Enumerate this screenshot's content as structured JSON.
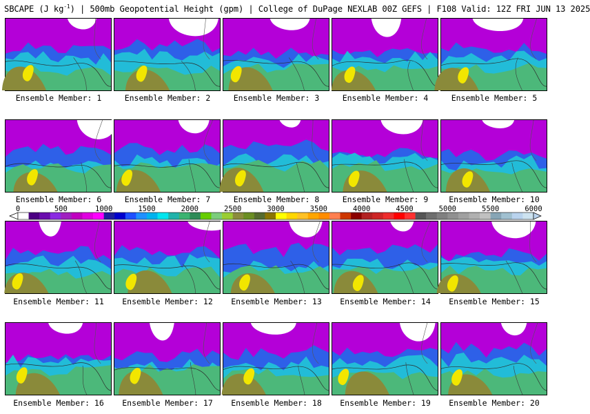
{
  "header": {
    "field_name": "SBCAPE (J kg",
    "field_unit_exp": "-1",
    "rest": ") | 500mb Geopotential Height (gpm) | College of DuPage NEXLAB 00Z GEFS | F108 Valid: 12Z FRI JUN 13 2025"
  },
  "member_prefix": "Ensemble Member:",
  "members": [
    "Ensemble Member: 1",
    "Ensemble Member: 2",
    "Ensemble Member: 3",
    "Ensemble Member: 4",
    "Ensemble Member: 5",
    "Ensemble Member: 6",
    "Ensemble Member: 7",
    "Ensemble Member: 8",
    "Ensemble Member: 9",
    "Ensemble Member: 10",
    "Ensemble Member: 11",
    "Ensemble Member: 12",
    "Ensemble Member: 13",
    "Ensemble Member: 14",
    "Ensemble Member: 15",
    "Ensemble Member: 16",
    "Ensemble Member: 17",
    "Ensemble Member: 18",
    "Ensemble Member: 19",
    "Ensemble Member: 20"
  ],
  "colorbar": {
    "ticks": [
      "0",
      "500",
      "1000",
      "1500",
      "2000",
      "2500",
      "3000",
      "3500",
      "4000",
      "4500",
      "5000",
      "5500",
      "6000"
    ],
    "colors": [
      "#ffffff",
      "#4b0082",
      "#6a0dad",
      "#8a2be2",
      "#a020c0",
      "#c000c0",
      "#e000e0",
      "#ff00ff",
      "#1e1e9e",
      "#0000cd",
      "#1e50ff",
      "#1e90ff",
      "#00b2ee",
      "#00e5ee",
      "#20b2aa",
      "#3cb371",
      "#2e8b57",
      "#66cd00",
      "#7ccd7c",
      "#9acd32",
      "#8b8b3c",
      "#6b8e23",
      "#556b2f",
      "#8b7500",
      "#ffff00",
      "#ffd700",
      "#ffc125",
      "#ffa500",
      "#ff8c00",
      "#ff7f50",
      "#cd3700",
      "#8b0000",
      "#b22222",
      "#cd2626",
      "#ee2c2c",
      "#ff0000",
      "#ff3030",
      "#555555",
      "#6e6e6e",
      "#808080",
      "#909090",
      "#a0a0a0",
      "#b0b0b0",
      "#c0c0c0",
      "#87a5b5",
      "#a0c0d0",
      "#b9d3ee",
      "#cde3f0"
    ]
  }
}
